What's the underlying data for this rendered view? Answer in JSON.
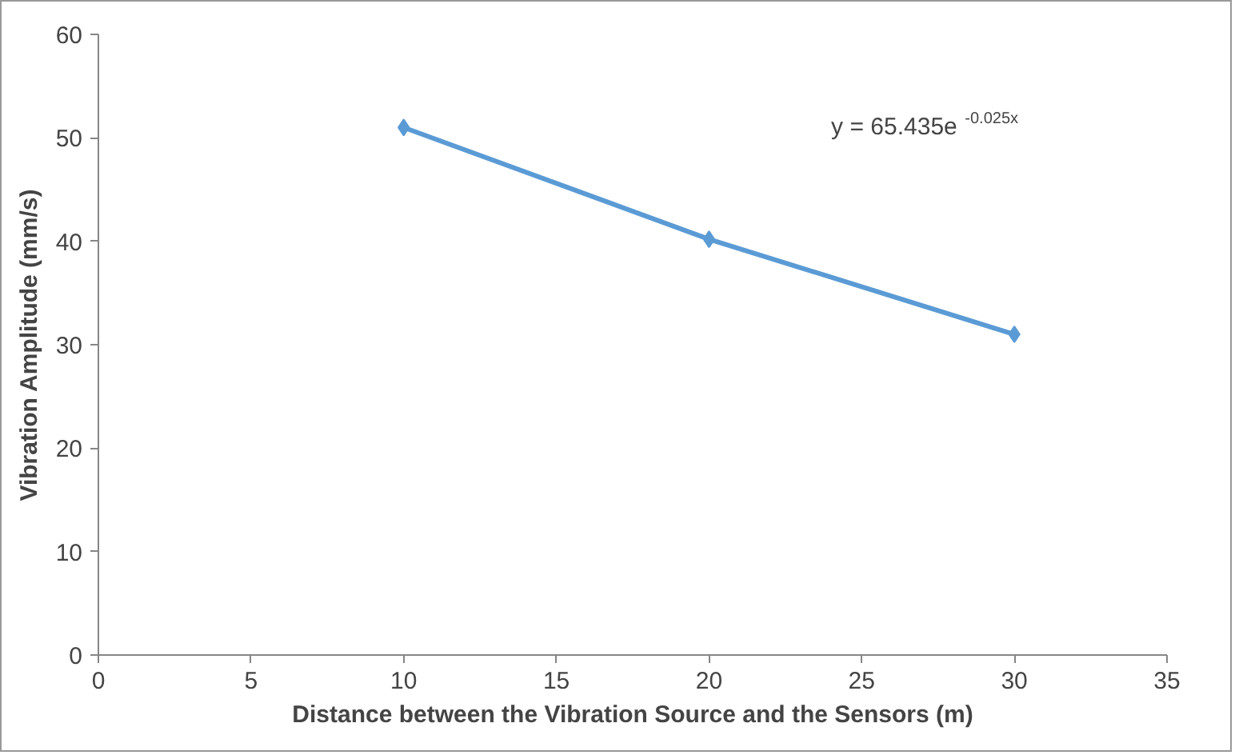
{
  "chart_data": {
    "type": "line",
    "xlabel": "Distance between the Vibration Source and the Sensors (m)",
    "ylabel": "Vibration Amplitude (mm/s)",
    "x": [
      10,
      20,
      30
    ],
    "series": [
      {
        "color": "#5b9bd5",
        "values": [
          51,
          40.2,
          31
        ]
      }
    ],
    "xlim": [
      0,
      35
    ],
    "xticks": [
      0,
      5,
      10,
      15,
      20,
      25,
      30,
      35
    ],
    "ylim": [
      0,
      60
    ],
    "yticks": [
      0,
      10,
      20,
      30,
      40,
      50,
      60
    ],
    "marker": "diamond",
    "line_style": "solid",
    "grid": false,
    "annotations": [
      "y = 65.435e$^{-0.025x}$"
    ]
  }
}
